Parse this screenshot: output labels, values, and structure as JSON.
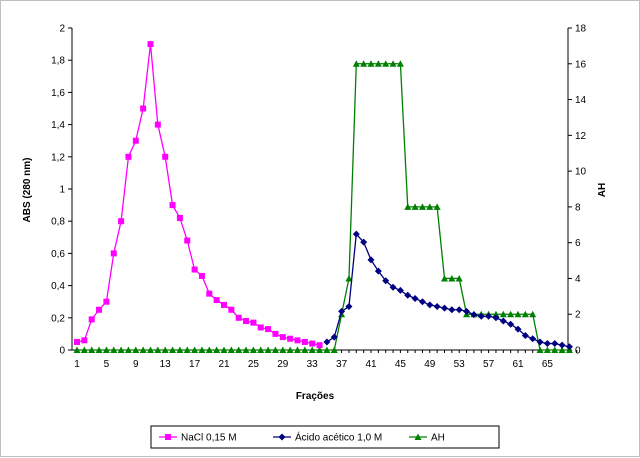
{
  "chart_data": {
    "type": "line",
    "title": "",
    "xlabel": "Frações",
    "ylabel": "ABS (280 nm)",
    "y2label": "AH",
    "x_ticks": [
      "1",
      "5",
      "9",
      "13",
      "17",
      "21",
      "25",
      "29",
      "33",
      "37",
      "41",
      "45",
      "49",
      "53",
      "57",
      "61",
      "65"
    ],
    "x_range": [
      1,
      69
    ],
    "ylim": [
      0,
      2
    ],
    "y_ticks": [
      "0",
      "0,2",
      "0,4",
      "0,6",
      "0,8",
      "1",
      "1,2",
      "1,4",
      "1,6",
      "1,8",
      "2"
    ],
    "y2lim": [
      0,
      18
    ],
    "y2_ticks": [
      "0",
      "2",
      "4",
      "6",
      "8",
      "10",
      "12",
      "14",
      "16",
      "18"
    ],
    "grid": false,
    "legend_position": "bottom",
    "series": [
      {
        "name": "NaCl 0,15 M",
        "color": "#ff00ff",
        "marker": "square",
        "axis": "left",
        "x": [
          1,
          2,
          3,
          4,
          5,
          6,
          7,
          8,
          9,
          10,
          11,
          12,
          13,
          14,
          15,
          16,
          17,
          18,
          19,
          20,
          21,
          22,
          23,
          24,
          25,
          26,
          27,
          28,
          29,
          30,
          31,
          32,
          33,
          34
        ],
        "values": [
          0.05,
          0.06,
          0.19,
          0.25,
          0.3,
          0.6,
          0.8,
          1.2,
          1.3,
          1.5,
          1.9,
          1.4,
          1.2,
          0.9,
          0.82,
          0.68,
          0.5,
          0.46,
          0.35,
          0.31,
          0.28,
          0.25,
          0.2,
          0.18,
          0.17,
          0.14,
          0.13,
          0.1,
          0.08,
          0.07,
          0.06,
          0.05,
          0.04,
          0.03
        ]
      },
      {
        "name": "Ácido acético 1,0 M",
        "color": "#000080",
        "marker": "diamond",
        "axis": "left",
        "x": [
          35,
          36,
          37,
          38,
          39,
          40,
          41,
          42,
          43,
          44,
          45,
          46,
          47,
          48,
          49,
          50,
          51,
          52,
          53,
          54,
          55,
          56,
          57,
          58,
          59,
          60,
          61,
          62,
          63,
          64,
          65,
          66,
          67,
          68
        ],
        "values": [
          0.05,
          0.08,
          0.24,
          0.27,
          0.72,
          0.67,
          0.56,
          0.49,
          0.43,
          0.39,
          0.37,
          0.34,
          0.32,
          0.3,
          0.28,
          0.27,
          0.26,
          0.25,
          0.25,
          0.24,
          0.22,
          0.21,
          0.21,
          0.2,
          0.18,
          0.16,
          0.13,
          0.09,
          0.07,
          0.05,
          0.04,
          0.04,
          0.03,
          0.02
        ]
      },
      {
        "name": "AH",
        "color": "#008000",
        "marker": "triangle",
        "axis": "right",
        "x": [
          1,
          2,
          3,
          4,
          5,
          6,
          7,
          8,
          9,
          10,
          11,
          12,
          13,
          14,
          15,
          16,
          17,
          18,
          19,
          20,
          21,
          22,
          23,
          24,
          25,
          26,
          27,
          28,
          29,
          30,
          31,
          32,
          33,
          34,
          35,
          36,
          37,
          38,
          39,
          40,
          41,
          42,
          43,
          44,
          45,
          46,
          47,
          48,
          49,
          50,
          51,
          52,
          53,
          54,
          55,
          56,
          57,
          58,
          59,
          60,
          61,
          62,
          63,
          64,
          65,
          66,
          67,
          68
        ],
        "values": [
          0,
          0,
          0,
          0,
          0,
          0,
          0,
          0,
          0,
          0,
          0,
          0,
          0,
          0,
          0,
          0,
          0,
          0,
          0,
          0,
          0,
          0,
          0,
          0,
          0,
          0,
          0,
          0,
          0,
          0,
          0,
          0,
          0,
          0,
          0,
          0,
          2,
          4,
          16,
          16,
          16,
          16,
          16,
          16,
          16,
          8,
          8,
          8,
          8,
          8,
          4,
          4,
          4,
          2,
          2,
          2,
          2,
          2,
          2,
          2,
          2,
          2,
          2,
          0,
          0,
          0,
          0,
          0
        ]
      }
    ]
  }
}
